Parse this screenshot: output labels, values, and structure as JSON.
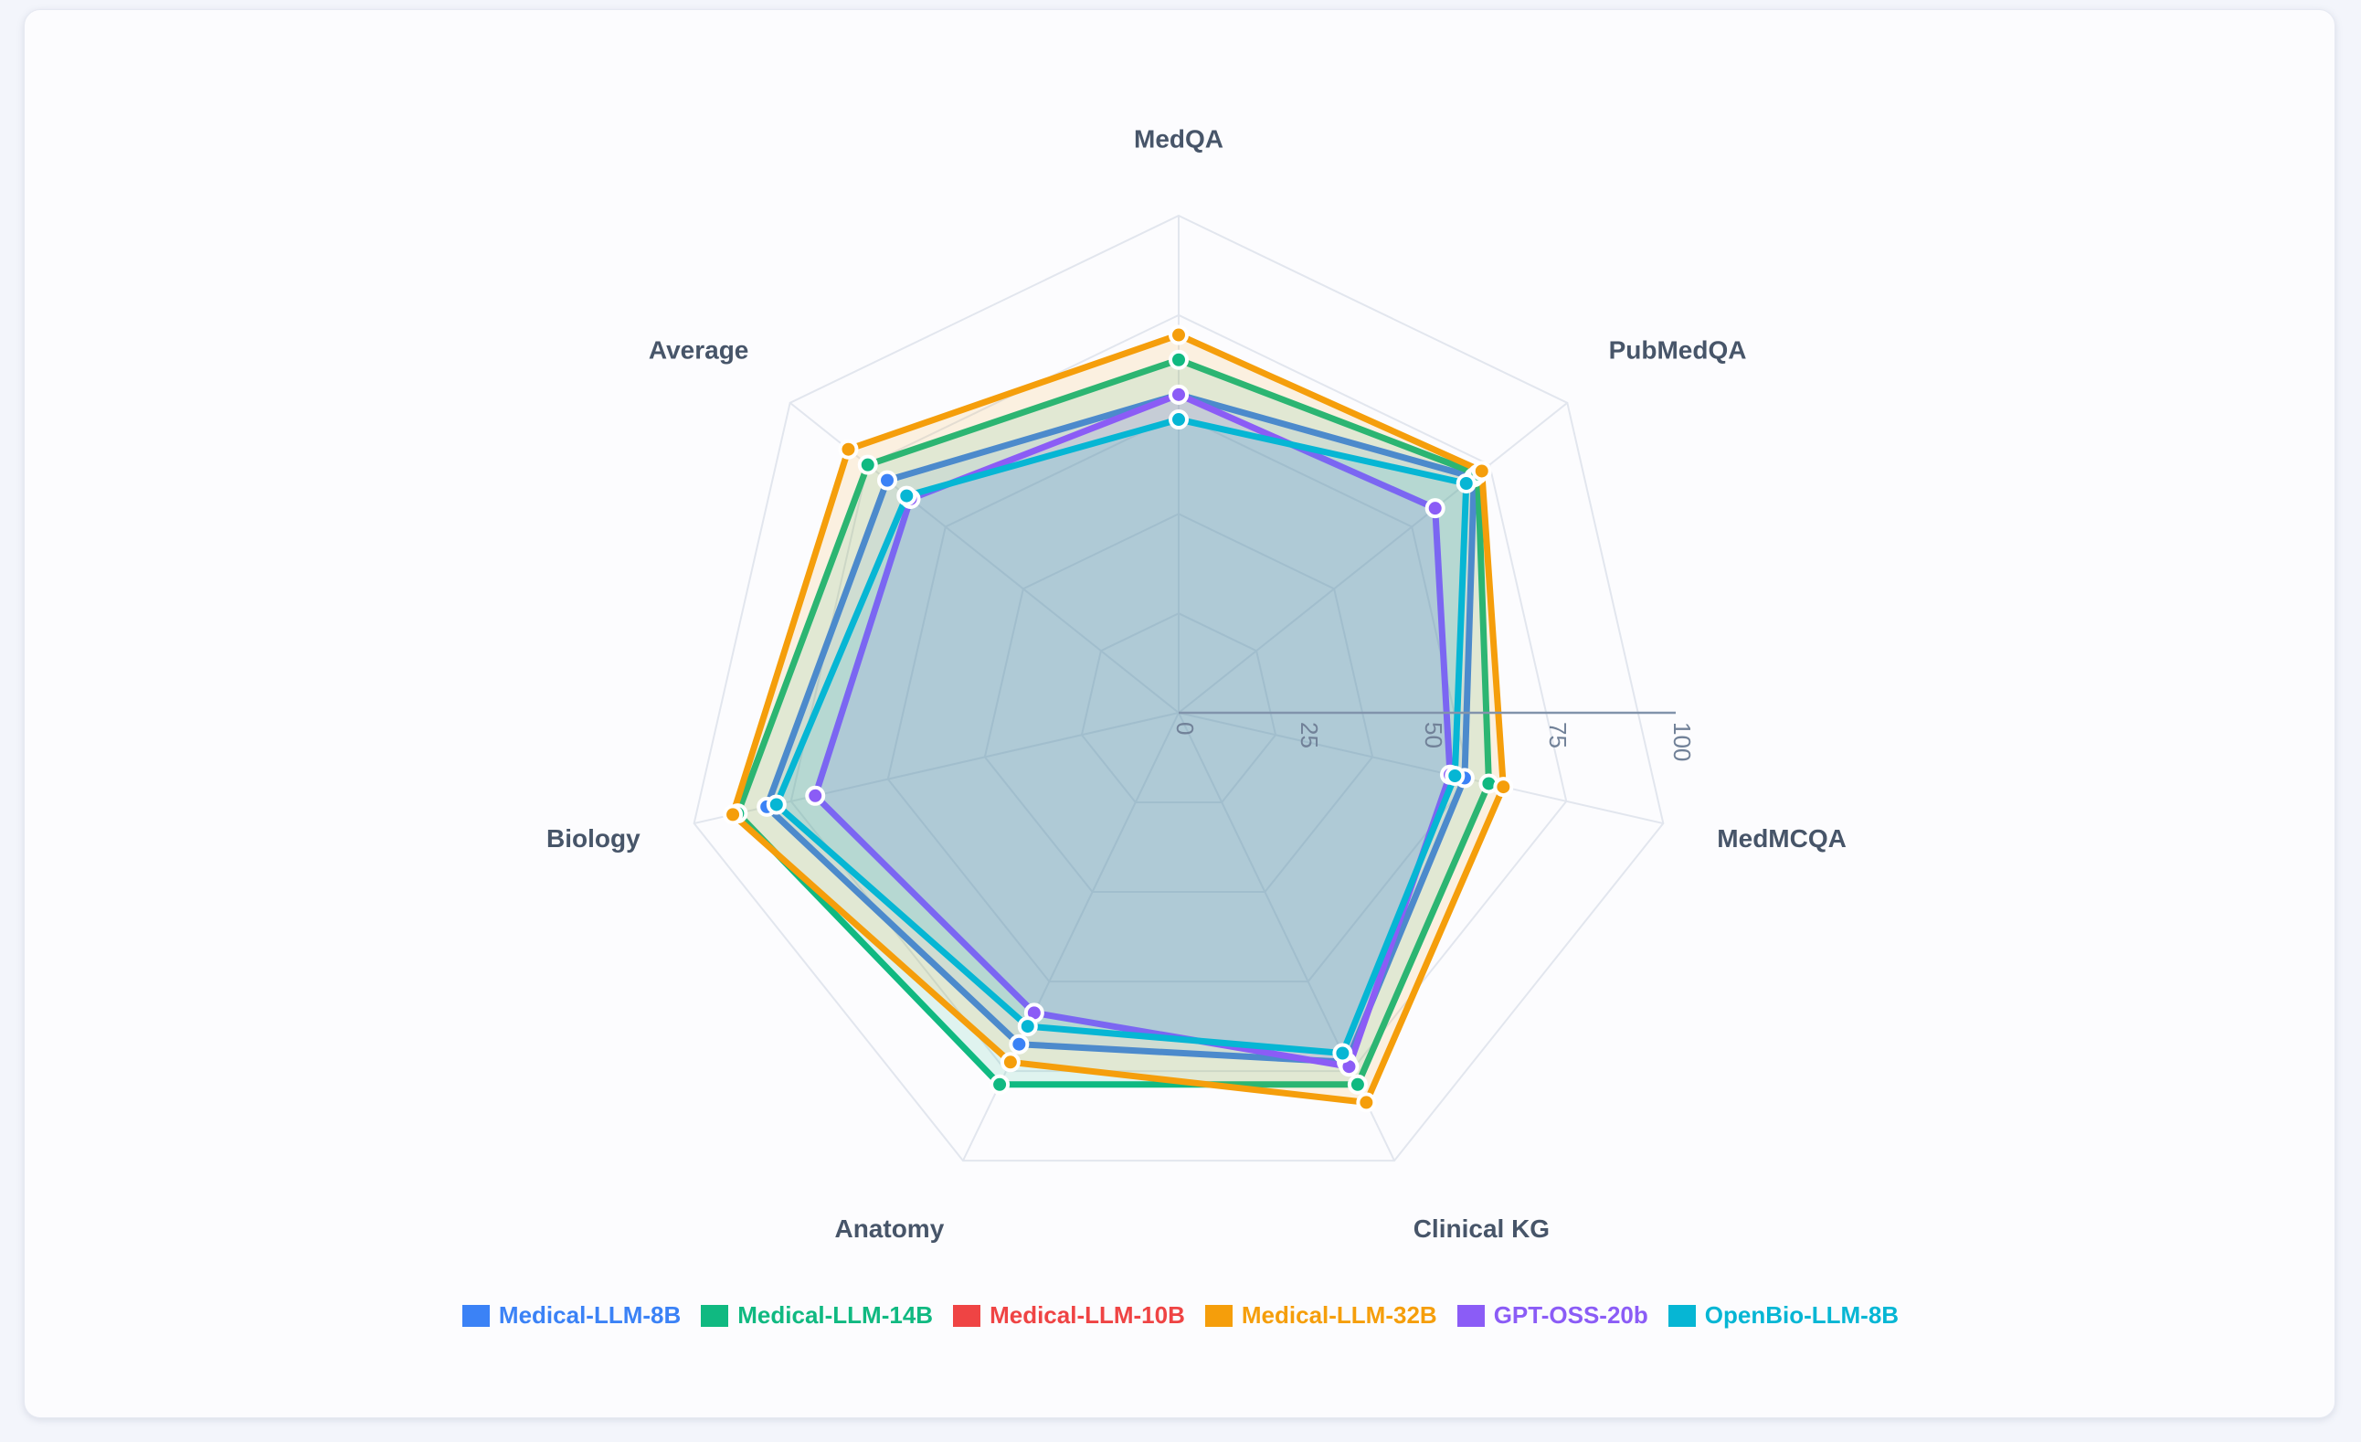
{
  "chart_data": {
    "type": "radar",
    "axes": [
      "MedQA",
      "PubMedQA",
      "MedMCQA",
      "Clinical KG",
      "Anatomy",
      "Biology",
      "Average"
    ],
    "radial_ticks": [
      "0",
      "25",
      "50",
      "75",
      "100"
    ],
    "range": [
      0,
      100
    ],
    "grid": true,
    "legend_position": "bottom",
    "series": [
      {
        "name": "Medical-LLM-8B",
        "color": "#3b82f6",
        "values": [
          64,
          76,
          59,
          78,
          74,
          85,
          75
        ]
      },
      {
        "name": "Medical-LLM-14B",
        "color": "#10b981",
        "values": [
          71,
          77,
          64,
          83,
          83,
          91,
          80
        ]
      },
      {
        "name": "Medical-LLM-10B",
        "color": "#ef4444",
        "values": []
      },
      {
        "name": "Medical-LLM-32B",
        "color": "#f59e0b",
        "values": [
          76,
          78,
          67,
          87,
          78,
          92,
          85
        ]
      },
      {
        "name": "GPT-OSS-20b",
        "color": "#8b5cf6",
        "values": [
          64,
          66,
          56,
          79,
          67,
          75,
          69
        ]
      },
      {
        "name": "OpenBio-LLM-8B",
        "color": "#06b6d4",
        "values": [
          59,
          74,
          57,
          76,
          70,
          83,
          70
        ]
      }
    ]
  }
}
